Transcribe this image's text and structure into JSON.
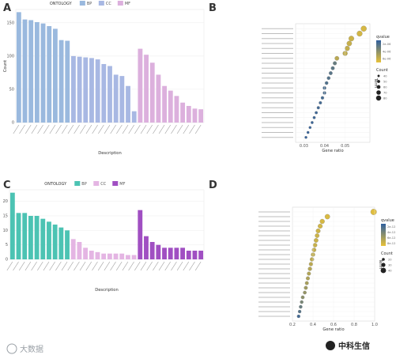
{
  "panels": {
    "A": "A",
    "B": "B",
    "C": "C",
    "D": "D"
  },
  "watermark": {
    "left": "大数据",
    "right": "中科生信"
  },
  "chart_data": [
    {
      "type": "bar",
      "panel": "A",
      "legend_title": "ONTOLOGY",
      "legend": [
        "BP",
        "CC",
        "MF"
      ],
      "colors": {
        "BP": "#9ab9de",
        "CC": "#a8b8e3",
        "MF": "#dcb0dd"
      },
      "xlabel": "Description",
      "ylabel": "Count",
      "ylim": [
        0,
        170
      ],
      "yticks": [
        0,
        50,
        100,
        150
      ],
      "series": [
        {
          "name": "BP",
          "values": [
            166,
            155,
            154,
            151,
            149,
            145,
            141,
            124,
            123
          ]
        },
        {
          "name": "CC",
          "values": [
            100,
            99,
            98,
            97,
            95,
            88,
            85,
            72,
            70,
            55,
            17
          ]
        },
        {
          "name": "MF",
          "values": [
            111,
            102,
            90,
            72,
            55,
            48,
            40,
            30,
            25,
            21,
            20
          ]
        }
      ]
    },
    {
      "type": "scatter",
      "panel": "B",
      "xlabel": "Gene ratio",
      "ylabel": "Term",
      "xticks": [
        "0.03",
        "0.04",
        "0.05"
      ],
      "color_legend_title": "qvalue",
      "color_legend_ticks": [
        "2e-06",
        "4e-06",
        "6e-06"
      ],
      "size_legend_title": "Count",
      "size_legend_ticks": [
        "40",
        "50",
        "60",
        "70",
        "80"
      ],
      "x": [
        0.059,
        0.057,
        0.053,
        0.052,
        0.051,
        0.05,
        0.046,
        0.045,
        0.044,
        0.043,
        0.042,
        0.041,
        0.04,
        0.04,
        0.039,
        0.038,
        0.037,
        0.036,
        0.035,
        0.034,
        0.033,
        0.032,
        0.031
      ],
      "qvalue_level": [
        0.9,
        0.88,
        0.85,
        0.82,
        0.8,
        0.78,
        0.75,
        0.3,
        0.25,
        0.22,
        0.2,
        0.18,
        0.15,
        0.14,
        0.12,
        0.11,
        0.1,
        0.08,
        0.07,
        0.06,
        0.05,
        0.04,
        0.03
      ],
      "count": [
        80,
        78,
        75,
        72,
        70,
        68,
        62,
        55,
        53,
        52,
        50,
        49,
        48,
        47,
        46,
        45,
        44,
        43,
        42,
        41,
        40,
        40,
        39
      ]
    },
    {
      "type": "bar",
      "panel": "C",
      "legend_title": "ONTOLOGY",
      "legend": [
        "BP",
        "CC",
        "MF"
      ],
      "colors": {
        "BP": "#4cc3b3",
        "CC": "#e4b5e3",
        "MF": "#a04fc2"
      },
      "xlabel": "Description",
      "ylabel": "Count",
      "ylim": [
        0,
        24
      ],
      "yticks": [
        0,
        5,
        10,
        15,
        20
      ],
      "series": [
        {
          "name": "BP",
          "values": [
            23,
            16,
            16,
            15,
            15,
            14,
            13,
            12,
            11,
            10
          ]
        },
        {
          "name": "CC",
          "values": [
            7,
            6,
            4,
            3,
            2.5,
            2,
            2,
            2,
            2,
            1.5,
            1.5
          ]
        },
        {
          "name": "MF",
          "values": [
            17,
            8,
            6,
            5,
            4,
            4,
            4,
            4,
            3,
            3,
            3
          ]
        }
      ]
    },
    {
      "type": "scatter",
      "panel": "D",
      "xlabel": "Gene ratio",
      "ylabel": "Term",
      "xticks": [
        "0.2",
        "0.4",
        "0.6",
        "0.8",
        "1.0"
      ],
      "color_legend_title": "qvalue",
      "color_legend_ticks": [
        "2e-12",
        "4e-12",
        "6e-12",
        "8e-12"
      ],
      "size_legend_title": "Count",
      "size_legend_ticks": [
        "20",
        "30",
        "40"
      ],
      "x": [
        0.99,
        0.54,
        0.49,
        0.47,
        0.45,
        0.44,
        0.43,
        0.42,
        0.41,
        0.4,
        0.39,
        0.38,
        0.37,
        0.36,
        0.35,
        0.34,
        0.33,
        0.32,
        0.3,
        0.29,
        0.28,
        0.27,
        0.26
      ],
      "qvalue_level": [
        0.95,
        0.92,
        0.9,
        0.88,
        0.86,
        0.85,
        0.84,
        0.82,
        0.8,
        0.78,
        0.76,
        0.75,
        0.72,
        0.7,
        0.68,
        0.65,
        0.6,
        0.55,
        0.5,
        0.4,
        0.3,
        0.2,
        0.1
      ],
      "count": [
        40,
        33,
        31,
        30,
        29,
        28,
        28,
        27,
        27,
        26,
        26,
        25,
        25,
        24,
        24,
        23,
        23,
        22,
        22,
        21,
        21,
        20,
        20
      ]
    }
  ]
}
